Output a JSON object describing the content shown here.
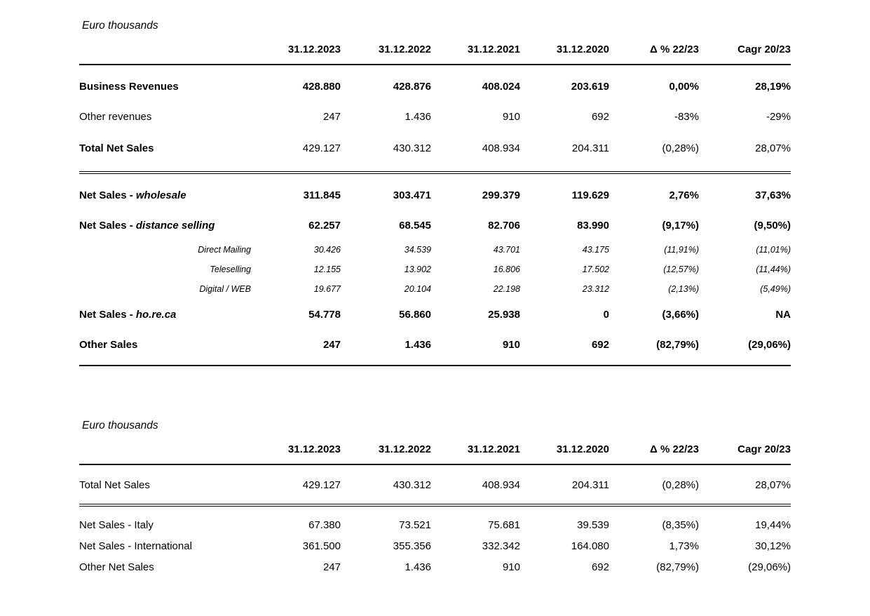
{
  "table1": {
    "unit_label": "Euro thousands",
    "columns": [
      "31.12.2023",
      "31.12.2022",
      "31.12.2021",
      "31.12.2020",
      "Δ % 22/23",
      "Cagr 20/23"
    ],
    "rows": [
      {
        "label": "Business Revenues",
        "label_italic": "",
        "values": [
          "428.880",
          "428.876",
          "408.024",
          "203.619",
          "0,00%",
          "28,19%"
        ]
      },
      {
        "label": "Other revenues",
        "label_italic": "",
        "values": [
          "247",
          "1.436",
          "910",
          "692",
          "-83%",
          "-29%"
        ]
      },
      {
        "label": "Total Net Sales",
        "label_italic": "",
        "values": [
          "429.127",
          "430.312",
          "408.934",
          "204.311",
          "(0,28%)",
          "28,07%"
        ]
      },
      {
        "label": "Net Sales - ",
        "label_italic": "wholesale",
        "values": [
          "311.845",
          "303.471",
          "299.379",
          "119.629",
          "2,76%",
          "37,63%"
        ]
      },
      {
        "label": "Net Sales - ",
        "label_italic": "distance selling",
        "values": [
          "62.257",
          "68.545",
          "82.706",
          "83.990",
          "(9,17%)",
          "(9,50%)"
        ]
      },
      {
        "label": "",
        "label_italic": "Direct Mailing",
        "values": [
          "30.426",
          "34.539",
          "43.701",
          "43.175",
          "(11,91%)",
          "(11,01%)"
        ]
      },
      {
        "label": "",
        "label_italic": "Teleselling",
        "values": [
          "12.155",
          "13.902",
          "16.806",
          "17.502",
          "(12,57%)",
          "(11,44%)"
        ]
      },
      {
        "label": "",
        "label_italic": "Digital / WEB",
        "values": [
          "19.677",
          "20.104",
          "22.198",
          "23.312",
          "(2,13%)",
          "(5,49%)"
        ]
      },
      {
        "label": "Net Sales - ",
        "label_italic": "ho.re.ca",
        "values": [
          "54.778",
          "56.860",
          "25.938",
          "0",
          "(3,66%)",
          "NA"
        ]
      },
      {
        "label": "Other Sales",
        "label_italic": "",
        "values": [
          "247",
          "1.436",
          "910",
          "692",
          "(82,79%)",
          "(29,06%)"
        ]
      }
    ]
  },
  "table2": {
    "unit_label": "Euro thousands",
    "columns": [
      "31.12.2023",
      "31.12.2022",
      "31.12.2021",
      "31.12.2020",
      "Δ % 22/23",
      "Cagr 20/23"
    ],
    "rows": [
      {
        "label": "Total Net Sales",
        "values": [
          "429.127",
          "430.312",
          "408.934",
          "204.311",
          "(0,28%)",
          "28,07%"
        ]
      },
      {
        "label": "Net Sales - Italy",
        "values": [
          "67.380",
          "73.521",
          "75.681",
          "39.539",
          "(8,35%)",
          "19,44%"
        ]
      },
      {
        "label": "Net Sales - International",
        "values": [
          "361.500",
          "355.356",
          "332.342",
          "164.080",
          "1,73%",
          "30,12%"
        ]
      },
      {
        "label": "Other Net Sales",
        "values": [
          "247",
          "1.436",
          "910",
          "692",
          "(82,79%)",
          "(29,06%)"
        ]
      }
    ]
  }
}
